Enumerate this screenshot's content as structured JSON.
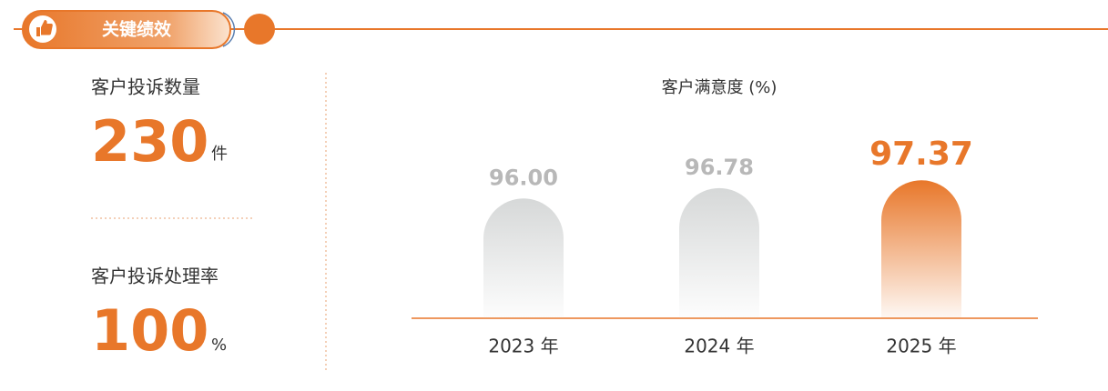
{
  "header": {
    "title": "关键绩效"
  },
  "kpis": [
    {
      "label": "客户投诉数量",
      "value": 230,
      "unit": "件"
    },
    {
      "label": "客户投诉处理率",
      "value": 100,
      "unit": "%"
    }
  ],
  "chart_data": {
    "type": "bar",
    "title": "客户满意度 (%)",
    "categories": [
      "2023 年",
      "2024 年",
      "2025 年"
    ],
    "values": [
      96,
      96.78,
      97.37
    ],
    "value_labels": [
      "96.00",
      "96.78",
      "97.37"
    ],
    "colors": [
      "#d6d8d8",
      "#d6d8d8",
      "#e8772a"
    ],
    "ylim": [
      87,
      98
    ]
  }
}
